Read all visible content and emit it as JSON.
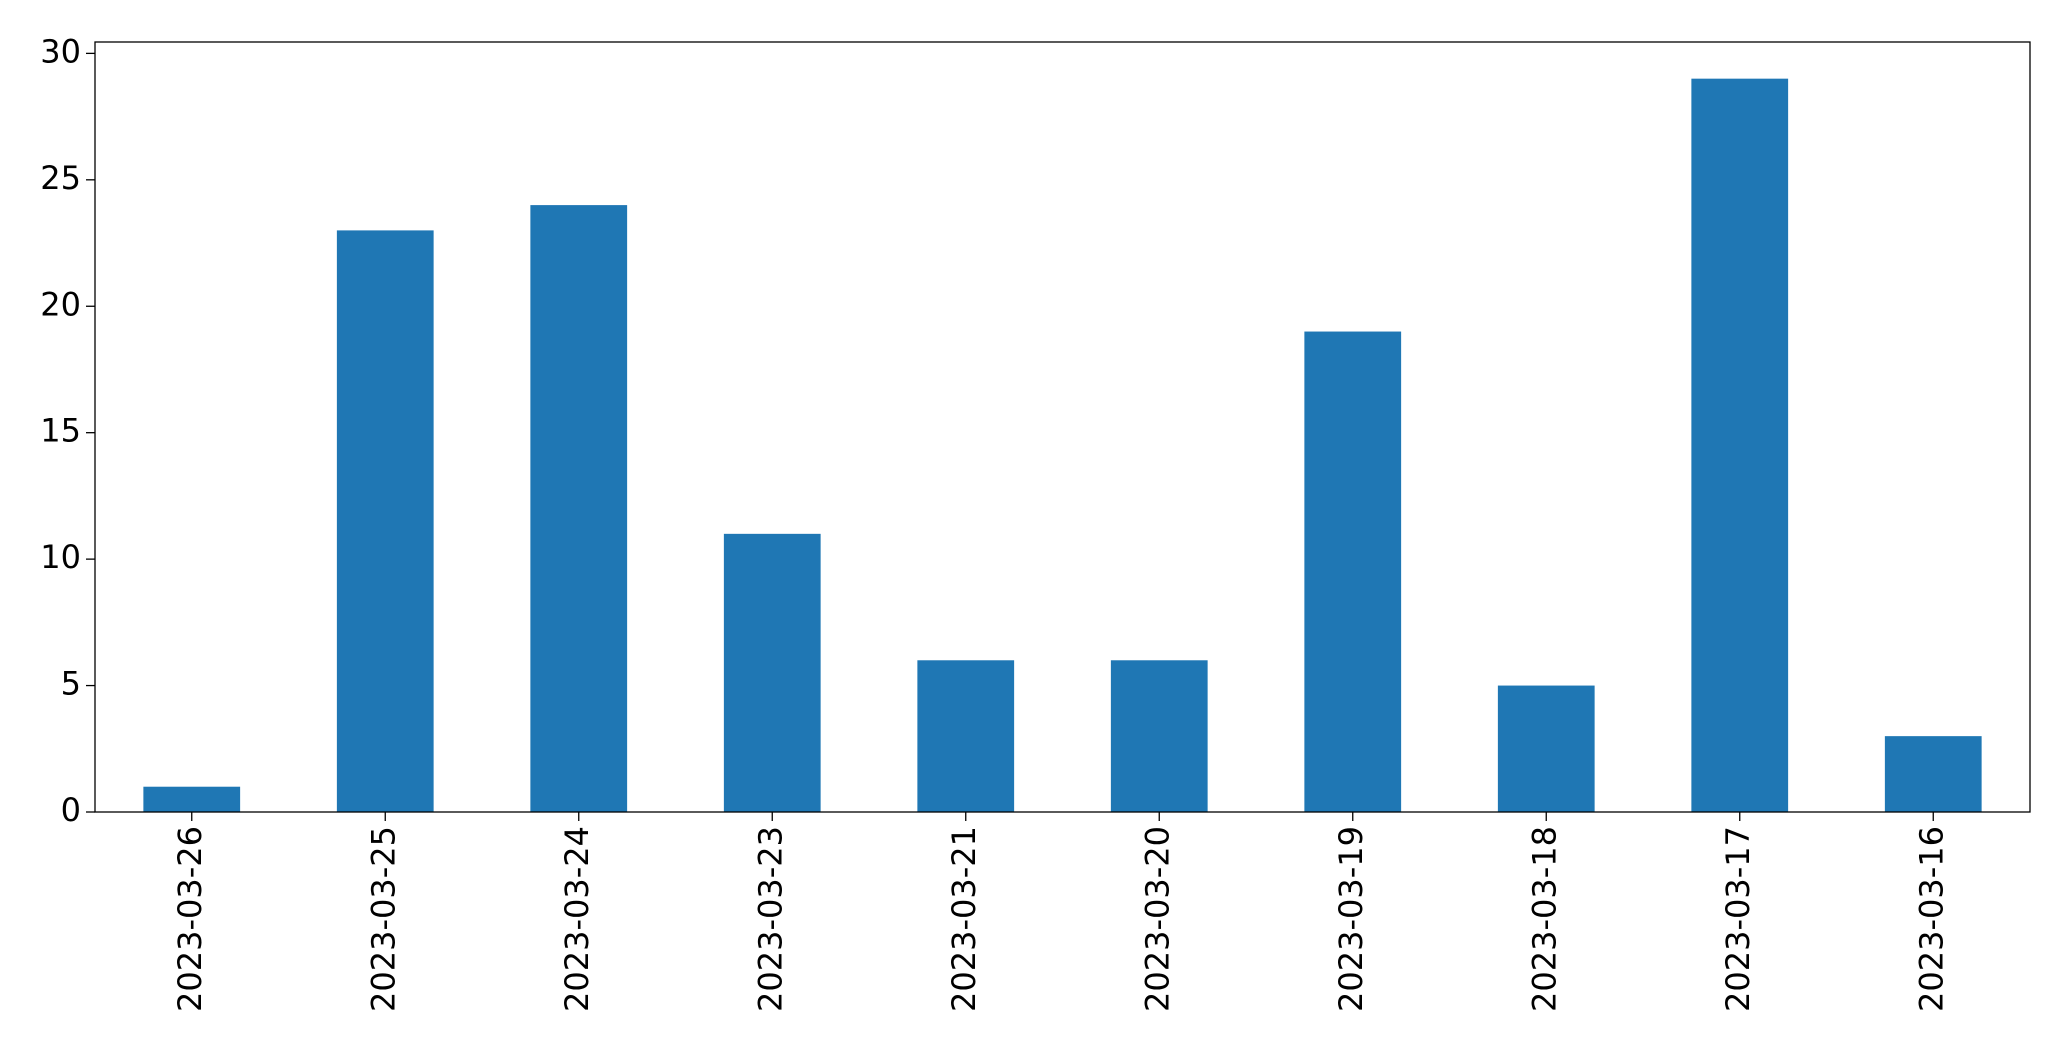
{
  "chart_data": {
    "type": "bar",
    "categories": [
      "2023-03-26",
      "2023-03-25",
      "2023-03-24",
      "2023-03-23",
      "2023-03-21",
      "2023-03-20",
      "2023-03-19",
      "2023-03-18",
      "2023-03-17",
      "2023-03-16"
    ],
    "values": [
      1,
      23,
      24,
      11,
      6,
      6,
      19,
      5,
      29,
      3
    ],
    "color": "#1f77b4",
    "ylim": [
      0,
      30.45
    ],
    "yticks": [
      0,
      5,
      10,
      15,
      20,
      25,
      30
    ],
    "grid": false
  }
}
